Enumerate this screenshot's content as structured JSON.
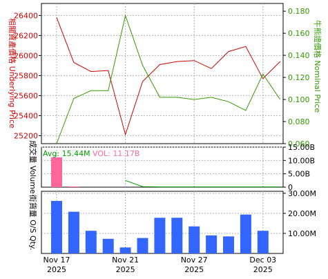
{
  "colors": {
    "underlying": "#cc0000",
    "nominal": "#339900",
    "volume_bar": "#ff6699",
    "avg_line": "#009900",
    "qty_bar": "#3366ff",
    "grid": "#b0b0b0",
    "left_label": "#cc0000",
    "right_label": "#339900"
  },
  "chart_data": [
    {
      "type": "line",
      "panel": "price",
      "left_axis_label": "相關資產價格 Underlying Price",
      "right_axis_label": "牛熊證價格 Nominal Price",
      "y_left_ticks": [
        "25200",
        "25400",
        "25600",
        "25800",
        "26000",
        "26200",
        "26400"
      ],
      "y_left_range": [
        25120,
        26520
      ],
      "y_right_ticks": [
        "0.060",
        "0.080",
        "0.100",
        "0.120",
        "0.140",
        "0.160",
        "0.180"
      ],
      "y_right_range": [
        0.06,
        0.187
      ],
      "series": [
        {
          "axis": "left",
          "values": [
            26380,
            25930,
            25840,
            25850,
            25210,
            25740,
            25910,
            25940,
            25950,
            25870,
            26040,
            26090,
            25770,
            25940
          ]
        },
        {
          "axis": "right",
          "values": [
            0.06,
            0.101,
            0.108,
            0.108,
            0.176,
            0.131,
            0.102,
            0.102,
            0.1,
            0.102,
            0.098,
            0.09,
            0.123,
            0.1
          ]
        }
      ]
    },
    {
      "type": "bar",
      "panel": "volume",
      "left_axis_label": "成交量 Volume",
      "avg_label": "Avg: 15.44M",
      "vol_label": "VOL: 11.17B",
      "y_right_ticks": [
        "0",
        "5.00B",
        "10.00B",
        "15.00B"
      ],
      "y_range": [
        0,
        15000000000
      ],
      "values": [
        11170000000,
        120000000,
        0,
        0,
        0,
        0,
        0,
        0,
        0,
        0,
        0,
        0,
        0,
        0
      ],
      "avg_line": [
        null,
        null,
        null,
        null,
        2500000000,
        200000000,
        110000000,
        110000000,
        110000000,
        110000000,
        110000000,
        110000000,
        110000000,
        110000000
      ]
    },
    {
      "type": "bar",
      "panel": "outstanding",
      "left_axis_label": "街貨量 O/S Qty.",
      "y_right_ticks": [
        "10.00M",
        "20.00M",
        "30.00M"
      ],
      "y_range": [
        0,
        31000000
      ],
      "values": [
        26200000,
        20800000,
        11300000,
        7300000,
        3000000,
        7700000,
        17800000,
        17800000,
        13500000,
        9000000,
        8500000,
        19400000,
        11300000,
        0
      ]
    }
  ],
  "x_axis": {
    "ticks": [
      {
        "index": 0,
        "day": "Nov 17",
        "year": "2025"
      },
      {
        "index": 4,
        "day": "Nov 21",
        "year": "2025"
      },
      {
        "index": 8,
        "day": "Nov 27",
        "year": "2025"
      },
      {
        "index": 12,
        "day": "Dec 03",
        "year": "2025"
      }
    ]
  }
}
